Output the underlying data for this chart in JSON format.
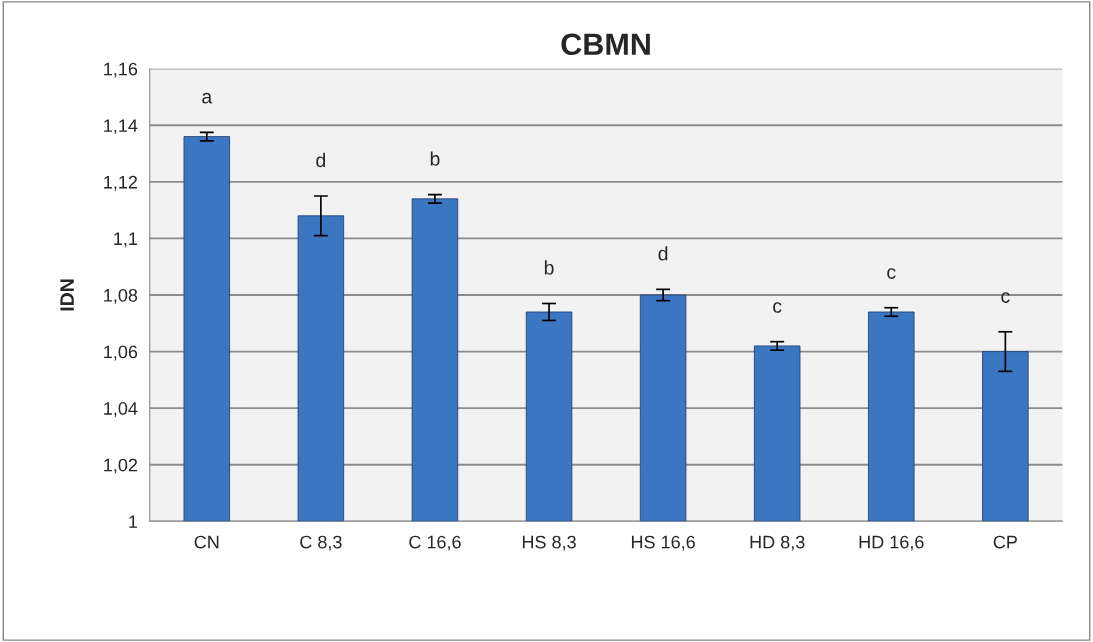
{
  "chart_data": {
    "type": "bar",
    "title": "CBMN",
    "ylabel": "IDN",
    "categories": [
      "CN",
      "C 8,3",
      "C 16,6",
      "HS 8,3",
      "HS 16,6",
      "HD 8,3",
      "HD 16,6",
      "CP"
    ],
    "values": [
      1.136,
      1.108,
      1.114,
      1.074,
      1.08,
      1.062,
      1.074,
      1.06
    ],
    "errors": [
      0.0015,
      0.007,
      0.0015,
      0.003,
      0.002,
      0.0015,
      0.0015,
      0.007
    ],
    "color": "#3b76c2",
    "ylim": [
      1,
      1.16
    ],
    "yticks": [
      {
        "value": 1,
        "label": "1"
      },
      {
        "value": 1.02,
        "label": "1,02"
      },
      {
        "value": 1.04,
        "label": "1,04"
      },
      {
        "value": 1.06,
        "label": "1,06"
      },
      {
        "value": 1.08,
        "label": "1,08"
      },
      {
        "value": 1.1,
        "label": "1,1"
      },
      {
        "value": 1.12,
        "label": "1,12"
      },
      {
        "value": 1.14,
        "label": "1,14"
      },
      {
        "value": 1.16,
        "label": "1,16"
      }
    ],
    "grid": "y",
    "annotations": [
      "a",
      "d",
      "b",
      "b",
      "d",
      "c",
      "c",
      "c"
    ]
  }
}
